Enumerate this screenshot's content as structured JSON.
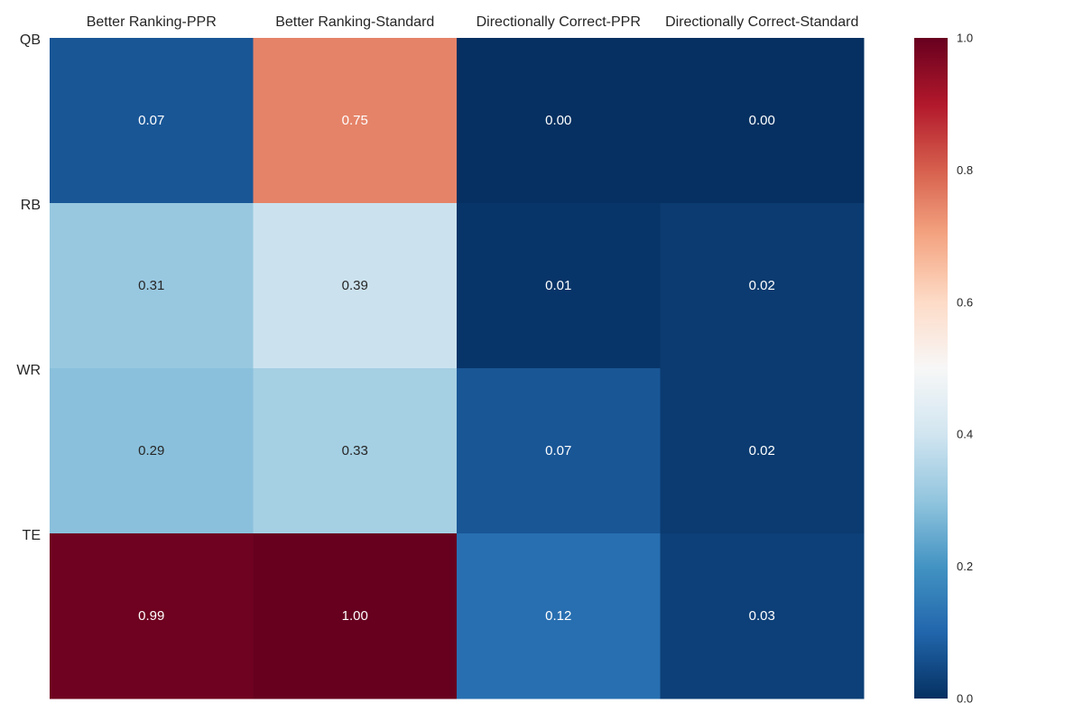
{
  "chart_data": {
    "type": "heatmap",
    "title": "",
    "xlabel": "",
    "ylabel": "",
    "columns": [
      "Better Ranking-PPR",
      "Better Ranking-Standard",
      "Directionally Correct-PPR",
      "Directionally Correct-Standard"
    ],
    "rows": [
      "QB",
      "RB",
      "WR",
      "TE"
    ],
    "values": [
      [
        0.07,
        0.75,
        0.0,
        0.0
      ],
      [
        0.31,
        0.39,
        0.01,
        0.02
      ],
      [
        0.29,
        0.33,
        0.07,
        0.02
      ],
      [
        0.99,
        1.0,
        0.12,
        0.03
      ]
    ],
    "value_format": "0.00",
    "colormap": "RdBu_r",
    "vmin": 0.0,
    "vmax": 1.0,
    "colorbar": {
      "ticks": [
        0.0,
        0.2,
        0.4,
        0.6,
        0.8,
        1.0
      ],
      "tick_labels": [
        "0.0",
        "0.2",
        "0.4",
        "0.6",
        "0.8",
        "1.0"
      ]
    },
    "column_labels_position": "top",
    "grid": false
  }
}
